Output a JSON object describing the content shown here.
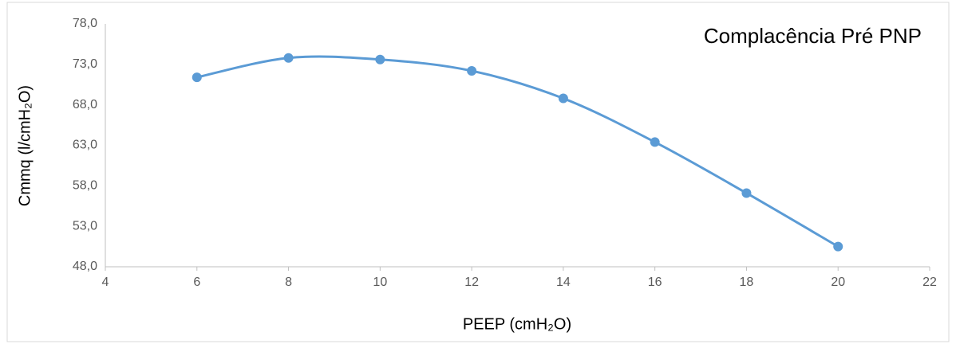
{
  "chart_data": {
    "type": "line",
    "title": "Complacência Pré PNP",
    "x_label": "PEEP (cmH₂O)",
    "y_label": "Cmmq (l/cmH₂O)",
    "x": [
      6,
      8,
      10,
      12,
      14,
      16,
      18,
      20
    ],
    "values": [
      71.4,
      73.8,
      73.6,
      72.2,
      68.8,
      63.4,
      57.1,
      50.5
    ],
    "color": "#5b9bd5",
    "smooth": true,
    "grid": false,
    "xlim": [
      4,
      22
    ],
    "xticks": [
      4,
      6,
      8,
      10,
      12,
      14,
      16,
      18,
      20,
      22
    ],
    "ylim": [
      48,
      78
    ],
    "yticks": [
      {
        "value": 48,
        "label": "48,0"
      },
      {
        "value": 53,
        "label": "53,0"
      },
      {
        "value": 58,
        "label": "58,0"
      },
      {
        "value": 63,
        "label": "63,0"
      },
      {
        "value": 68,
        "label": "68,0"
      },
      {
        "value": 73,
        "label": "73,0"
      },
      {
        "value": 78,
        "label": "78,0"
      }
    ]
  }
}
